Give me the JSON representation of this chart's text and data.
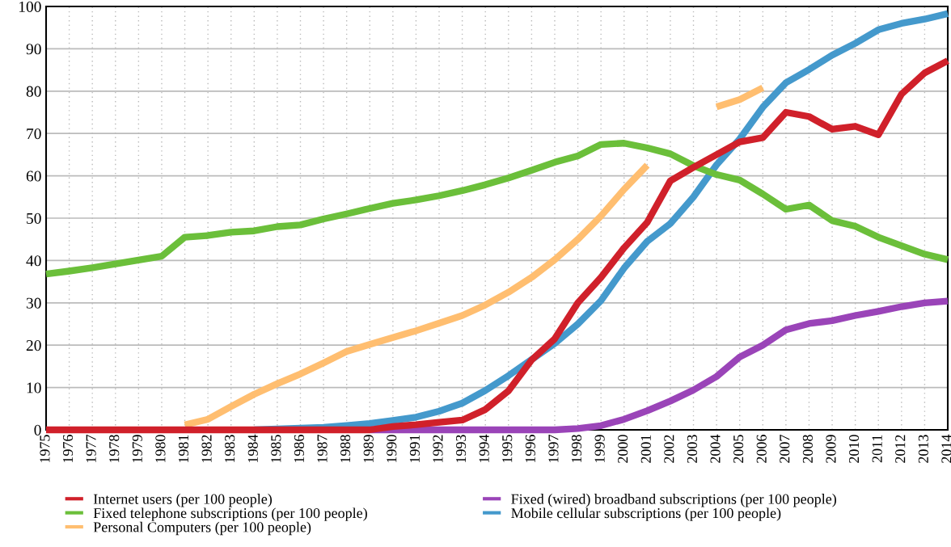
{
  "chart_data": {
    "type": "line",
    "categories": [
      "1975",
      "1976",
      "1977",
      "1978",
      "1979",
      "1980",
      "1981",
      "1982",
      "1983",
      "1984",
      "1985",
      "1986",
      "1987",
      "1988",
      "1989",
      "1990",
      "1991",
      "1992",
      "1993",
      "1994",
      "1995",
      "1996",
      "1997",
      "1998",
      "1999",
      "2000",
      "2001",
      "2002",
      "2003",
      "2004",
      "2005",
      "2006",
      "2007",
      "2008",
      "2009",
      "2010",
      "2011",
      "2012",
      "2013",
      "2014"
    ],
    "series": [
      {
        "name": "Internet users (per 100 people)",
        "color": "#d0202a",
        "values": [
          0,
          0,
          0,
          0,
          0,
          0,
          0,
          0,
          0,
          0,
          0,
          0,
          0,
          0,
          0,
          0.8,
          1.2,
          1.8,
          2.3,
          4.8,
          9.2,
          16.5,
          21.5,
          30,
          36,
          43,
          49,
          58.8,
          62,
          65,
          68,
          69,
          75,
          74,
          71,
          71.7,
          69.7,
          79.3,
          84.3,
          87.2
        ]
      },
      {
        "name": "Fixed telephone subscriptions (per 100 people)",
        "color": "#6bbf3a",
        "values": [
          36.8,
          37.5,
          38.3,
          39.2,
          40.1,
          41,
          45.5,
          45.9,
          46.7,
          47,
          48,
          48.4,
          49.8,
          51,
          52.3,
          53.5,
          54.3,
          55.3,
          56.5,
          57.9,
          59.5,
          61.3,
          63.2,
          64.7,
          67.4,
          67.7,
          66.6,
          65.2,
          62.4,
          60.3,
          59,
          55.7,
          52.1,
          53.1,
          49.4,
          48.1,
          45.5,
          43.5,
          41.5,
          40.2
        ]
      },
      {
        "name": "Personal Computers (per 100 people)",
        "color": "#ffbe70",
        "values": [
          null,
          null,
          null,
          null,
          null,
          null,
          1.2,
          2.5,
          5.5,
          8.4,
          10.9,
          13.2,
          15.8,
          18.5,
          20.2,
          21.8,
          23.4,
          25.2,
          27,
          29.5,
          32.5,
          36,
          40.2,
          45,
          50.5,
          56.8,
          62.5,
          null,
          null,
          76.3,
          78,
          80.8,
          null,
          null,
          null,
          null,
          null,
          null,
          null,
          null
        ]
      },
      {
        "name": "Fixed (wired) broadband subscriptions (per 100 people)",
        "color": "#9a44b8",
        "values": [
          null,
          null,
          null,
          null,
          null,
          null,
          null,
          null,
          null,
          null,
          null,
          null,
          null,
          null,
          0,
          0,
          0,
          0,
          0,
          0,
          0,
          0,
          0,
          0.3,
          1,
          2.5,
          4.5,
          6.8,
          9.4,
          12.6,
          17.2,
          20,
          23.6,
          25.1,
          25.8,
          27,
          28,
          29.1,
          30,
          30.4
        ]
      },
      {
        "name": "Mobile cellular subscriptions (per 100 people)",
        "color": "#4499cc",
        "values": [
          null,
          null,
          null,
          null,
          null,
          null,
          null,
          null,
          null,
          0,
          0.2,
          0.4,
          0.6,
          1,
          1.5,
          2.2,
          3,
          4.4,
          6.3,
          9.3,
          12.8,
          16.6,
          20.4,
          25,
          30.5,
          38.2,
          44.5,
          48.7,
          55,
          62.6,
          68.7,
          76.2,
          82,
          85.1,
          88.5,
          91.3,
          94.5,
          96,
          97,
          98.3
        ]
      }
    ],
    "ylim": [
      0,
      100
    ],
    "yticks": [
      0,
      10,
      20,
      30,
      40,
      50,
      60,
      70,
      80,
      90,
      100
    ],
    "grid": true,
    "legend": "bottom",
    "marker": "none",
    "line_style": "solid"
  }
}
